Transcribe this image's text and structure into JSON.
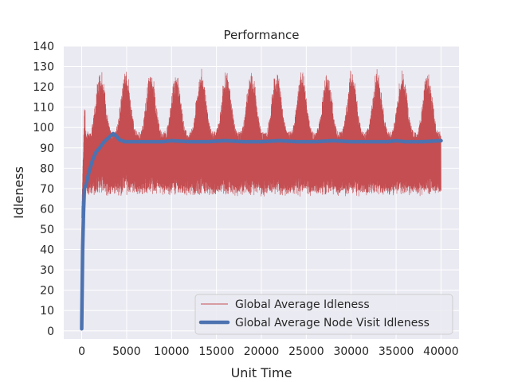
{
  "chart_data": {
    "type": "line",
    "title": "Performance",
    "xlabel": "Unit Time",
    "ylabel": "Idleness",
    "xlim": [
      -2000,
      42000
    ],
    "ylim": [
      -4,
      140
    ],
    "xticks": [
      0,
      5000,
      10000,
      15000,
      20000,
      25000,
      30000,
      35000,
      40000
    ],
    "yticks": [
      0,
      10,
      20,
      30,
      40,
      50,
      60,
      70,
      80,
      90,
      100,
      110,
      120,
      130,
      140
    ],
    "grid": true,
    "legend_position": "lower-right",
    "series": [
      {
        "name": "Global Average Idleness",
        "color": "#c44e52",
        "style": "oscillating band, periodic peaks about every 2800 units",
        "x_range": [
          0,
          40000
        ],
        "envelope_low": [
          [
            0,
            55
          ],
          [
            500,
            70
          ],
          [
            40000,
            68
          ]
        ],
        "envelope_high": [
          [
            0,
            60
          ],
          [
            300,
            110
          ],
          [
            2000,
            127
          ],
          [
            40000,
            130
          ]
        ],
        "typical_trough": 68,
        "typical_peak": 130
      },
      {
        "name": "Global Average Node Visit Idleness",
        "color": "#4c72b0",
        "x": [
          0,
          100,
          200,
          300,
          500,
          800,
          1200,
          1600,
          2000,
          2500,
          3000,
          3500,
          3800,
          4200,
          4800,
          5500,
          7000,
          9000,
          10000,
          12000,
          14000,
          16000,
          18000,
          20000,
          22000,
          24000,
          26000,
          28000,
          30000,
          32000,
          34000,
          35000,
          36000,
          38000,
          40000
        ],
        "y": [
          1,
          40,
          58,
          70,
          72,
          78,
          84,
          88,
          90,
          93,
          95,
          97,
          96,
          94,
          93,
          93,
          93,
          93,
          93.5,
          93,
          93,
          93.5,
          93,
          93,
          93.5,
          93,
          93,
          93.5,
          93,
          93,
          93,
          93.5,
          93,
          93,
          93.5
        ]
      }
    ]
  }
}
